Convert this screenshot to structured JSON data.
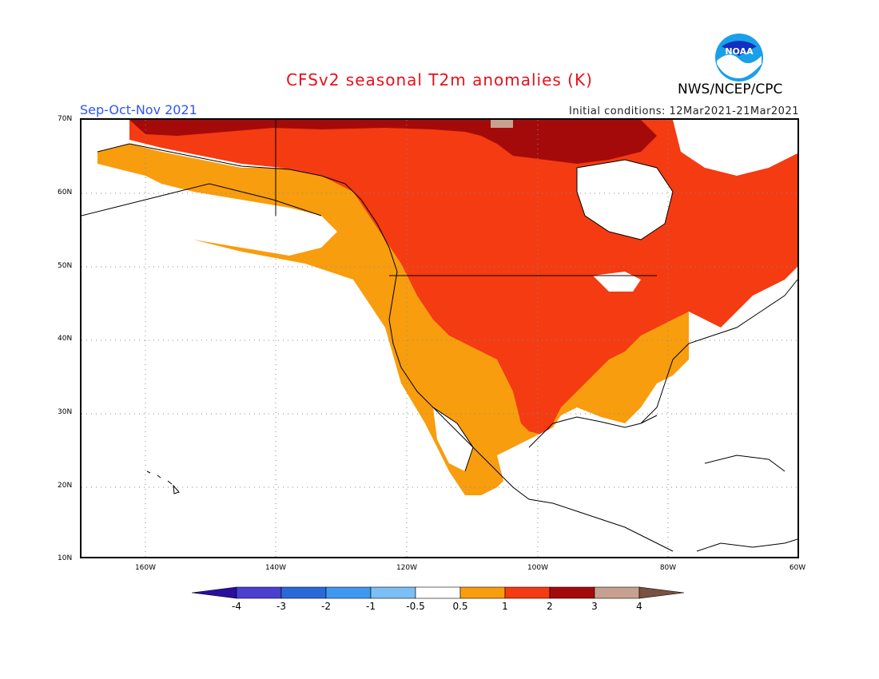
{
  "header": {
    "title": "CFSv2 seasonal T2m anomalies (K)",
    "period": "Sep-Oct-Nov 2021",
    "initial_conditions": "Initial conditions: 12Mar2021-21Mar2021",
    "agency": "NWS/NCEP/CPC",
    "logo_text": "NOAA"
  },
  "map": {
    "lat_range": [
      10,
      70
    ],
    "lon_range": [
      -170,
      -60
    ],
    "lat_ticks": [
      "70N",
      "60N",
      "50N",
      "40N",
      "30N",
      "20N",
      "10N"
    ],
    "lon_ticks": [
      "160W",
      "140W",
      "120W",
      "100W",
      "80W",
      "60W"
    ],
    "grid": "dotted"
  },
  "legend": {
    "units": "K",
    "labels": [
      "-4",
      "-3",
      "-2",
      "-1",
      "-0.5",
      "0.5",
      "1",
      "2",
      "3",
      "4"
    ],
    "colors": [
      "#2a0ea0",
      "#4a3fd0",
      "#2a6ad8",
      "#3f98ef",
      "#7cbff4",
      "#ffffff",
      "#f89d0e",
      "#f43b12",
      "#a50a0a",
      "#c7a08f",
      "#7a5040"
    ]
  }
}
